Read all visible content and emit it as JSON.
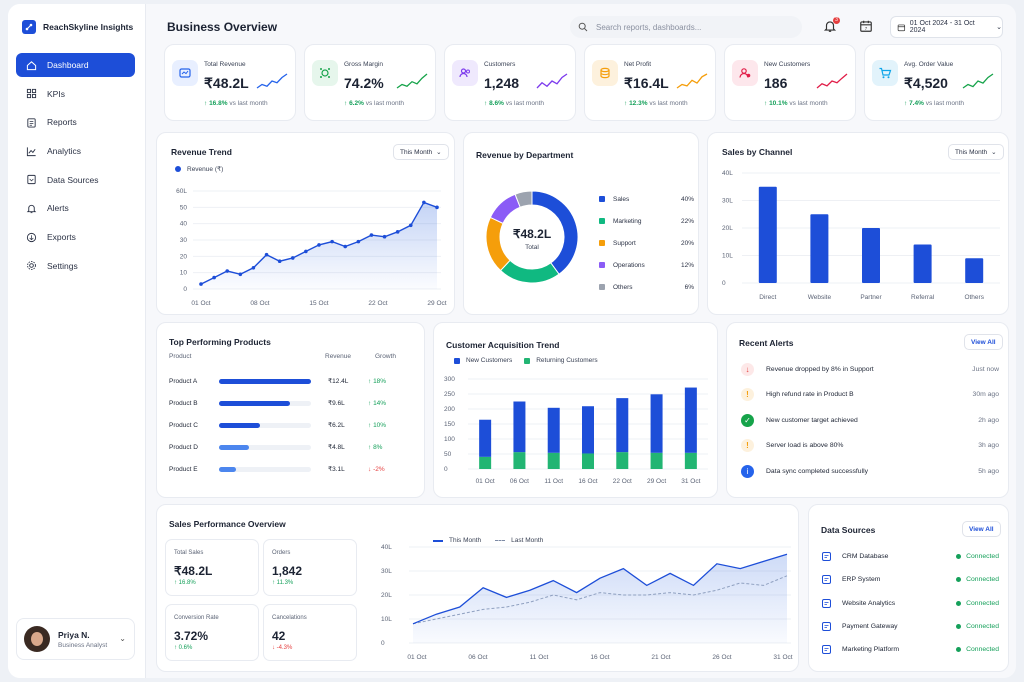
{
  "app": {
    "brand": "ReachSkyline Insights"
  },
  "sidebar": {
    "items": [
      {
        "label": "Dashboard",
        "icon": "home-icon",
        "active": true
      },
      {
        "label": "KPIs",
        "icon": "grid-icon"
      },
      {
        "label": "Reports",
        "icon": "clipboard-icon"
      },
      {
        "label": "Analytics",
        "icon": "chart-line-icon"
      },
      {
        "label": "Data Sources",
        "icon": "database-icon"
      },
      {
        "label": "Alerts",
        "icon": "bell-icon"
      },
      {
        "label": "Exports",
        "icon": "export-icon"
      },
      {
        "label": "Settings",
        "icon": "gear-icon"
      }
    ],
    "user": {
      "name": "Priya N.",
      "role": "Business Analyst"
    }
  },
  "header": {
    "title": "Business Overview",
    "search_placeholder": "Search reports, dashboards...",
    "notification_count": "3",
    "date_range": "01 Oct 2024 - 31 Oct 2024"
  },
  "kpis": [
    {
      "label": "Total Revenue",
      "value": "₹48.2L",
      "delta": "16.8%",
      "delta_suffix": "vs last month",
      "color": "#2563eb",
      "bg": "#e8efff",
      "spark": [
        2,
        3,
        2.5,
        4,
        3.5,
        5,
        6
      ]
    },
    {
      "label": "Gross Margin",
      "value": "74.2%",
      "delta": "6.2%",
      "delta_suffix": "vs last month",
      "color": "#16a34a",
      "bg": "#e6f6ec",
      "spark": [
        2,
        3,
        2.5,
        3.8,
        3.2,
        4.8,
        6
      ]
    },
    {
      "label": "Customers",
      "value": "1,248",
      "delta": "8.6%",
      "delta_suffix": "vs last month",
      "color": "#7c3aed",
      "bg": "#efe9fd",
      "spark": [
        2,
        3.5,
        2.5,
        4,
        3.2,
        5,
        6
      ]
    },
    {
      "label": "Net Profit",
      "value": "₹16.4L",
      "delta": "12.3%",
      "delta_suffix": "vs last month",
      "color": "#f59e0b",
      "bg": "#fdf1dd",
      "spark": [
        2,
        3,
        2.6,
        4.2,
        3.4,
        5.2,
        6
      ]
    },
    {
      "label": "New Customers",
      "value": "186",
      "delta": "10.1%",
      "delta_suffix": "vs last month",
      "color": "#e11d48",
      "bg": "#fde7ec",
      "spark": [
        2,
        3.2,
        2.6,
        4,
        3.5,
        4.8,
        6
      ]
    },
    {
      "label": "Avg. Order Value",
      "value": "₹4,520",
      "delta": "7.4%",
      "delta_suffix": "vs last month",
      "color": "#16a34a",
      "bg": "#e2f3fb",
      "spark": [
        2,
        3,
        2.4,
        4,
        3.4,
        5,
        6
      ]
    }
  ],
  "revenue_trend": {
    "title": "Revenue Trend",
    "filter": "This Month",
    "legend": "Revenue (₹)"
  },
  "revenue_by_department": {
    "title": "Revenue by Department",
    "center_value": "₹48.2L",
    "center_label": "Total"
  },
  "sales_by_channel": {
    "title": "Sales by Channel",
    "filter": "This Month"
  },
  "top_products": {
    "title": "Top Performing Products",
    "col_product": "Product",
    "col_revenue": "Revenue",
    "col_growth": "Growth",
    "rows": [
      {
        "name": "Product A",
        "revenue": "₹12.4L",
        "growth": "18%",
        "share": 1.0,
        "up": true
      },
      {
        "name": "Product B",
        "revenue": "₹9.6L",
        "growth": "14%",
        "share": 0.77,
        "up": true
      },
      {
        "name": "Product C",
        "revenue": "₹6.2L",
        "growth": "10%",
        "share": 0.45,
        "up": true
      },
      {
        "name": "Product D",
        "revenue": "₹4.8L",
        "growth": "8%",
        "share": 0.33,
        "up": true
      },
      {
        "name": "Product E",
        "revenue": "₹3.1L",
        "growth": "-2%",
        "share": 0.19,
        "up": false
      }
    ]
  },
  "acquisition": {
    "title": "Customer Acquisition Trend",
    "legend_new": "New Customers",
    "legend_returning": "Returning Customers"
  },
  "alerts": {
    "title": "Recent Alerts",
    "view_all": "View All",
    "items": [
      {
        "text": "Revenue dropped by 8% in Support",
        "time": "Just now",
        "type": "down",
        "color": "#e53e3e"
      },
      {
        "text": "High refund rate in Product B",
        "time": "30m ago",
        "type": "warn",
        "color": "#f59e0b"
      },
      {
        "text": "New customer target achieved",
        "time": "2h ago",
        "type": "ok",
        "color": "#16a34a"
      },
      {
        "text": "Server load is above 80%",
        "time": "3h ago",
        "type": "warn",
        "color": "#f59e0b"
      },
      {
        "text": "Data sync completed successfully",
        "time": "5h ago",
        "type": "info",
        "color": "#2563eb"
      }
    ]
  },
  "sales_performance": {
    "title": "Sales Performance Overview",
    "legend_this": "This Month",
    "legend_last": "Last Month",
    "metrics": [
      {
        "label": "Total Sales",
        "value": "₹48.2L",
        "delta": "16.8%",
        "up": true
      },
      {
        "label": "Orders",
        "value": "1,842",
        "delta": "11.3%",
        "up": true
      },
      {
        "label": "Conversion Rate",
        "value": "3.72%",
        "delta": "0.6%",
        "up": true
      },
      {
        "label": "Cancelations",
        "value": "42",
        "delta": "-4.3%",
        "up": false
      }
    ]
  },
  "data_sources": {
    "title": "Data Sources",
    "view_all": "View All",
    "items": [
      {
        "name": "CRM Database",
        "status": "Connected"
      },
      {
        "name": "ERP System",
        "status": "Connected"
      },
      {
        "name": "Website Analytics",
        "status": "Connected"
      },
      {
        "name": "Payment Gateway",
        "status": "Connected"
      },
      {
        "name": "Marketing Platform",
        "status": "Connected"
      }
    ]
  },
  "chart_data": [
    {
      "type": "line",
      "title": "Revenue Trend",
      "series": [
        {
          "name": "Revenue (₹)",
          "values": [
            3,
            7,
            11,
            9,
            13,
            21,
            17,
            19,
            23,
            27,
            29,
            26,
            29,
            33,
            32,
            35,
            39,
            53,
            50
          ]
        }
      ],
      "x_tick_labels": [
        "01 Oct",
        "08 Oct",
        "15 Oct",
        "22 Oct",
        "29 Oct"
      ],
      "y_ticks": [
        0,
        10,
        20,
        30,
        40,
        50,
        60
      ],
      "y_tick_labels": [
        "0",
        "10",
        "20",
        "30",
        "40",
        "50",
        "60L"
      ],
      "ylim": [
        0,
        60
      ]
    },
    {
      "type": "pie",
      "title": "Revenue by Department",
      "categories": [
        "Sales",
        "Marketing",
        "Support",
        "Operations",
        "Others"
      ],
      "values": [
        40,
        22,
        20,
        12,
        6
      ],
      "labels": [
        "40%",
        "22%",
        "20%",
        "12%",
        "6%"
      ],
      "colors": [
        "#1d4ed8",
        "#10b981",
        "#f59e0b",
        "#8b5cf6",
        "#9ca3af"
      ]
    },
    {
      "type": "bar",
      "title": "Sales by Channel",
      "categories": [
        "Direct",
        "Website",
        "Partner",
        "Referral",
        "Others"
      ],
      "values": [
        35,
        25,
        20,
        14,
        9
      ],
      "y_ticks": [
        0,
        10,
        20,
        30,
        40
      ],
      "y_tick_labels": [
        "0",
        "10L",
        "20L",
        "30L",
        "40L"
      ],
      "ylim": [
        0,
        40
      ]
    },
    {
      "type": "bar",
      "title": "Customer Acquisition Trend",
      "categories": [
        "01 Oct",
        "06 Oct",
        "11 Oct",
        "16 Oct",
        "22 Oct",
        "29 Oct",
        "31 Oct"
      ],
      "series": [
        {
          "name": "New Customers",
          "values": [
            33,
            45,
            40,
            42,
            48,
            52,
            58
          ],
          "color": "#1d4ed8"
        },
        {
          "name": "Returning Customers",
          "values": [
            18,
            25,
            24,
            23,
            25,
            24,
            24
          ],
          "color": "#22b573"
        }
      ],
      "stacked": true,
      "y_ticks": [
        0,
        50,
        100,
        150,
        200,
        250,
        300
      ],
      "ylim": [
        0,
        300
      ]
    },
    {
      "type": "area",
      "title": "Sales Performance Overview",
      "x_tick_labels": [
        "01 Oct",
        "06 Oct",
        "11 Oct",
        "16 Oct",
        "21 Oct",
        "26 Oct",
        "31 Oct"
      ],
      "series": [
        {
          "name": "This Month",
          "values": [
            8,
            12,
            15,
            23,
            19,
            22,
            26,
            21,
            27,
            31,
            24,
            29,
            24,
            33,
            31,
            34,
            37
          ]
        },
        {
          "name": "Last Month",
          "values": [
            8,
            10,
            12,
            14,
            15,
            17,
            20,
            18,
            21,
            20,
            20,
            21,
            20,
            22,
            25,
            24,
            28
          ]
        }
      ],
      "y_ticks": [
        0,
        10,
        20,
        30,
        40
      ],
      "y_tick_labels": [
        "0",
        "10L",
        "20L",
        "30L",
        "40L"
      ],
      "ylim": [
        0,
        40
      ]
    }
  ]
}
